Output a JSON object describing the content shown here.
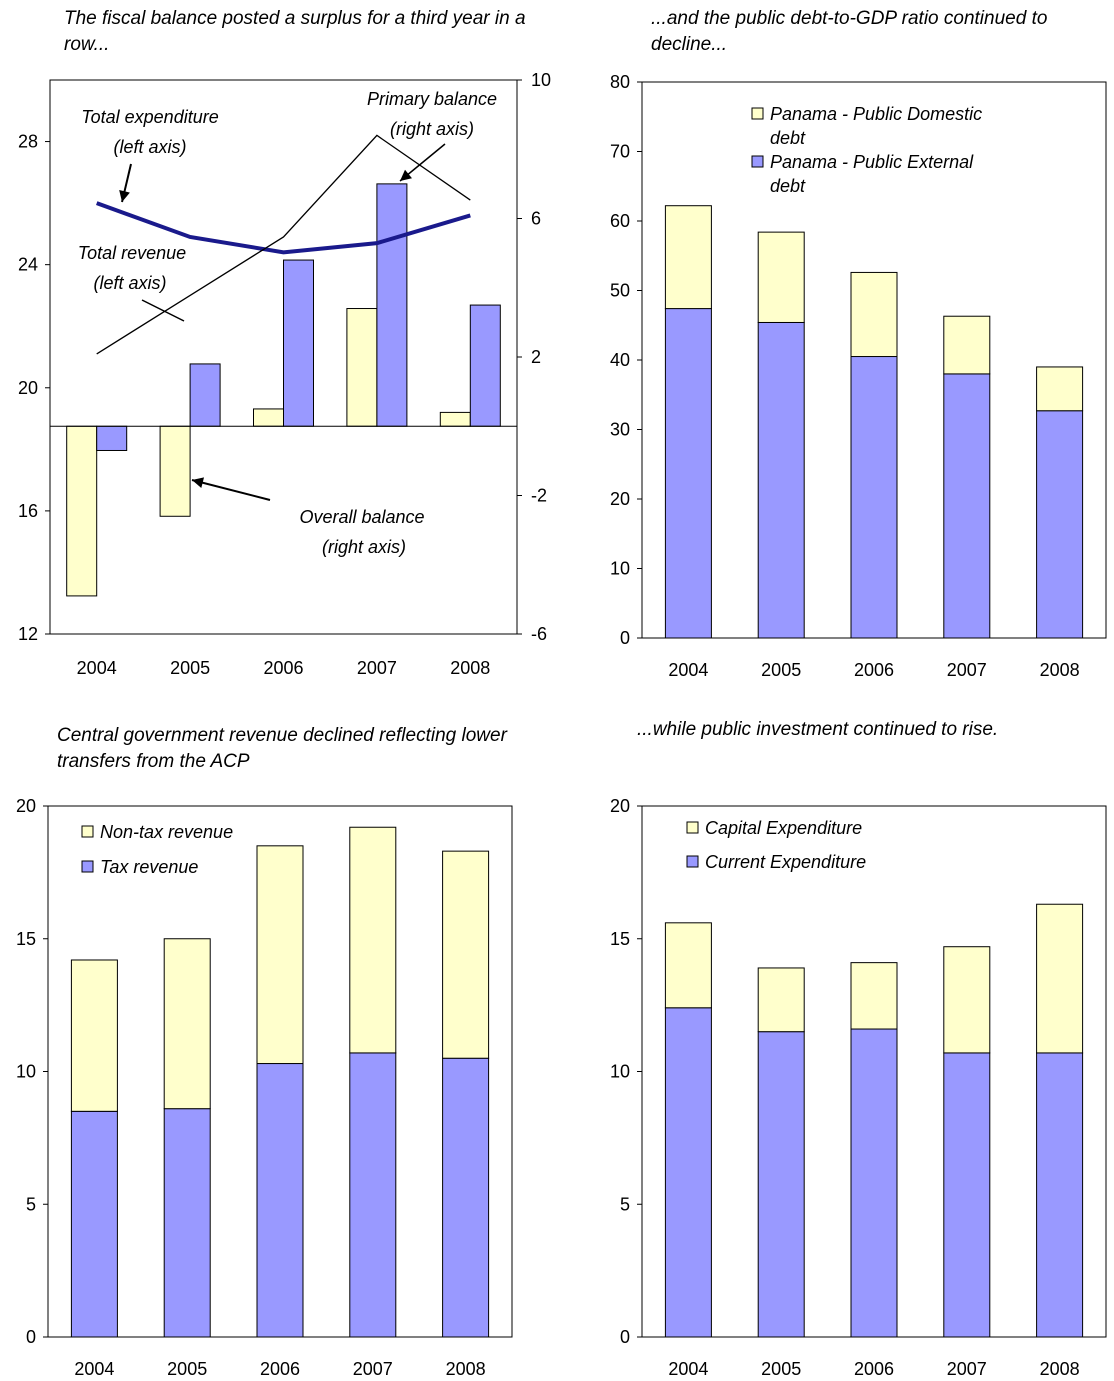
{
  "chart_data": [
    {
      "id": "fiscal",
      "type": "bar",
      "title": "The fiscal balance posted a surplus for a third year in a row...",
      "categories": [
        "2004",
        "2005",
        "2006",
        "2007",
        "2008"
      ],
      "y_left": {
        "ticks": [
          "12",
          "16",
          "20",
          "24",
          "28"
        ],
        "range": [
          12,
          30
        ]
      },
      "y_right": {
        "ticks": [
          "-6",
          "-2",
          "2",
          "6",
          "10"
        ],
        "range": [
          -6,
          10
        ]
      },
      "bar_series": [
        {
          "name": "Overall balance",
          "axis": "right",
          "color": "#FFFFCC",
          "values": [
            -4.9,
            -2.6,
            0.5,
            3.4,
            0.4
          ]
        },
        {
          "name": "Primary balance",
          "axis": "right",
          "color": "#9999FF",
          "values": [
            -0.7,
            1.8,
            4.8,
            7.0,
            3.5
          ]
        }
      ],
      "line_series": [
        {
          "name": "Total expenditure",
          "axis": "left",
          "color": "#1A1A8C",
          "width": "thick",
          "values": [
            26.0,
            24.9,
            24.4,
            24.7,
            25.6
          ]
        },
        {
          "name": "Total revenue",
          "axis": "left",
          "color": "#000000",
          "width": "thin",
          "values": [
            21.1,
            23.0,
            24.9,
            28.2,
            26.1
          ]
        }
      ],
      "annotations": [
        {
          "text": [
            "Total expenditure",
            "(left axis)"
          ]
        },
        {
          "text": [
            "Primary balance",
            "(right axis)"
          ]
        },
        {
          "text": [
            "Total revenue",
            "(left axis)"
          ]
        },
        {
          "text": [
            "Overall balance",
            "(right axis)"
          ]
        }
      ]
    },
    {
      "id": "debt",
      "type": "bar",
      "stacked": true,
      "title": "...and the public debt-to-GDP ratio continued to decline...",
      "categories": [
        "2004",
        "2005",
        "2006",
        "2007",
        "2008"
      ],
      "yticks": [
        "0",
        "10",
        "20",
        "30",
        "40",
        "50",
        "60",
        "70",
        "80"
      ],
      "ylim": [
        0,
        80
      ],
      "series": [
        {
          "name": "Panama - Public External debt",
          "color": "#9999FF",
          "values": [
            47.4,
            45.4,
            40.5,
            38.0,
            32.7
          ]
        },
        {
          "name": "Panama - Public Domestic debt",
          "color": "#FFFFCC",
          "values": [
            14.8,
            13.0,
            12.1,
            8.3,
            6.3
          ]
        }
      ],
      "legend": [
        {
          "lines": [
            "Panama - Public Domestic",
            "debt"
          ],
          "color": "#FFFFCC"
        },
        {
          "lines": [
            "Panama - Public External",
            "debt"
          ],
          "color": "#9999FF"
        }
      ]
    },
    {
      "id": "revenue",
      "type": "bar",
      "stacked": true,
      "title": "Central government revenue declined reflecting lower transfers from the ACP",
      "categories": [
        "2004",
        "2005",
        "2006",
        "2007",
        "2008"
      ],
      "yticks": [
        "0",
        "5",
        "10",
        "15",
        "20"
      ],
      "ylim": [
        0,
        20
      ],
      "series": [
        {
          "name": "Tax revenue",
          "color": "#9999FF",
          "values": [
            8.5,
            8.6,
            10.3,
            10.7,
            10.5
          ]
        },
        {
          "name": "Non-tax revenue",
          "color": "#FFFFCC",
          "values": [
            5.7,
            6.4,
            8.2,
            8.5,
            7.8
          ]
        }
      ],
      "legend": [
        {
          "lines": [
            "Non-tax revenue"
          ],
          "color": "#FFFFCC"
        },
        {
          "lines": [
            "Tax revenue"
          ],
          "color": "#9999FF"
        }
      ]
    },
    {
      "id": "investment",
      "type": "bar",
      "stacked": true,
      "title": "...while public investment continued to rise.",
      "categories": [
        "2004",
        "2005",
        "2006",
        "2007",
        "2008"
      ],
      "yticks": [
        "0",
        "5",
        "10",
        "15",
        "20"
      ],
      "ylim": [
        0,
        20
      ],
      "series": [
        {
          "name": "Current Expenditure",
          "color": "#9999FF",
          "values": [
            12.4,
            11.5,
            11.6,
            10.7,
            10.7
          ]
        },
        {
          "name": "Capital Expenditure",
          "color": "#FFFFCC",
          "values": [
            3.2,
            2.4,
            2.5,
            4.0,
            5.6
          ]
        }
      ],
      "legend": [
        {
          "lines": [
            "Capital Expenditure"
          ],
          "color": "#FFFFCC"
        },
        {
          "lines": [
            "Current Expenditure"
          ],
          "color": "#9999FF"
        }
      ]
    }
  ]
}
